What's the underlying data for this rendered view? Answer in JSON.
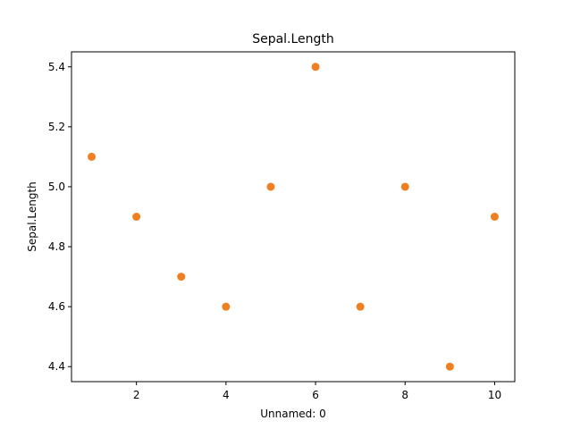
{
  "chart_data": {
    "type": "scatter",
    "title": "Sepal.Length",
    "xlabel": "Unnamed: 0",
    "ylabel": "Sepal.Length",
    "x": [
      1,
      2,
      3,
      4,
      5,
      6,
      7,
      8,
      9,
      10
    ],
    "y": [
      5.1,
      4.9,
      4.7,
      4.6,
      5.0,
      5.4,
      4.6,
      5.0,
      4.4,
      4.9
    ],
    "xlim": [
      0.55,
      10.45
    ],
    "ylim": [
      4.35,
      5.45
    ],
    "xticks": [
      2,
      4,
      6,
      8,
      10
    ],
    "xtick_labels": [
      "2",
      "4",
      "6",
      "8",
      "10"
    ],
    "yticks": [
      4.4,
      4.6,
      4.8,
      5.0,
      5.2,
      5.4
    ],
    "ytick_labels": [
      "4.4",
      "4.6",
      "4.8",
      "5.0",
      "5.2",
      "5.4"
    ],
    "grid": false,
    "marker_color": "#f07f22"
  }
}
